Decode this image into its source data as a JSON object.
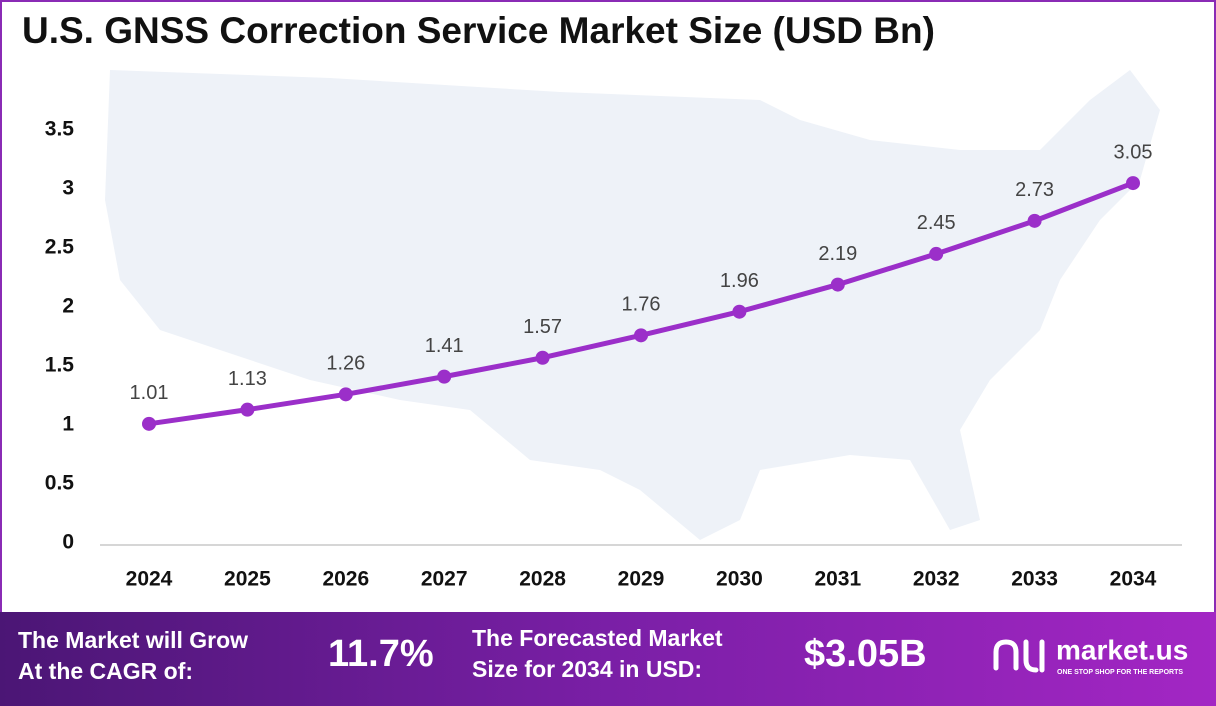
{
  "chart_data": {
    "type": "line",
    "title": "U.S. GNSS Correction Service Market Size (USD Bn)",
    "categories": [
      "2024",
      "2025",
      "2026",
      "2027",
      "2028",
      "2029",
      "2030",
      "2031",
      "2032",
      "2033",
      "2034"
    ],
    "values": [
      1.01,
      1.13,
      1.26,
      1.41,
      1.57,
      1.76,
      1.96,
      2.19,
      2.45,
      2.73,
      3.05
    ],
    "color": "#9b2fc9",
    "ylim": [
      0,
      3.5
    ],
    "yticks": [
      0,
      0.5,
      1,
      1.5,
      2,
      2.5,
      3,
      3.5
    ],
    "grid": false
  },
  "footer": {
    "cagr_text": [
      "The Market will Grow",
      "At the CAGR of:"
    ],
    "cagr_value": "11.7%",
    "forecast_text": [
      "The Forecasted Market",
      "Size for 2034 in USD:"
    ],
    "forecast_value": "$3.05B",
    "brand": "market.us",
    "tagline": "ONE STOP SHOP FOR THE REPORTS"
  }
}
